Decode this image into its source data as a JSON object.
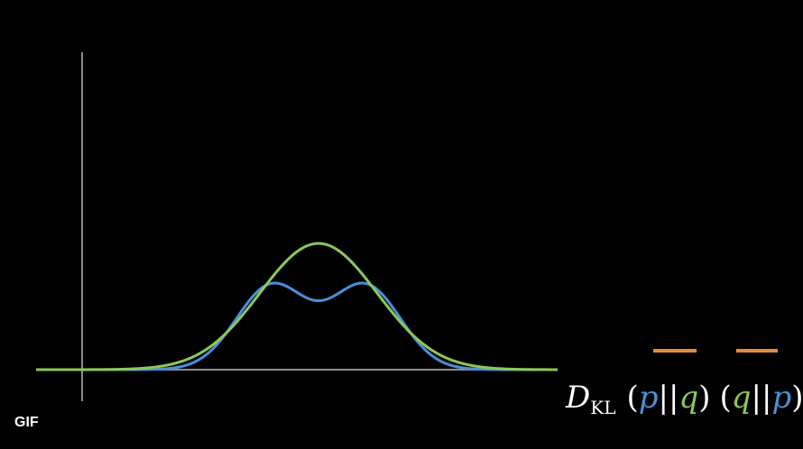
{
  "badge": {
    "label": "GIF"
  },
  "colors": {
    "background": "#000000",
    "axis": "#8c8c8c",
    "p_curve": "#4a90d9",
    "q_curve": "#8cc85a",
    "bar_marker": "#e58a3c",
    "text": "#ffffff"
  },
  "formula": {
    "D": "D",
    "subscript": "KL",
    "open": "(",
    "close": ")",
    "sep": "||",
    "p": "p",
    "q": "q"
  },
  "diagram": {
    "p_bimodal": {
      "components": [
        {
          "mean": -1.0,
          "sd": 0.75
        },
        {
          "mean": 1.0,
          "sd": 0.75
        }
      ]
    },
    "q_unimodal": {
      "mean": 0.0,
      "sd": 1.25
    }
  }
}
